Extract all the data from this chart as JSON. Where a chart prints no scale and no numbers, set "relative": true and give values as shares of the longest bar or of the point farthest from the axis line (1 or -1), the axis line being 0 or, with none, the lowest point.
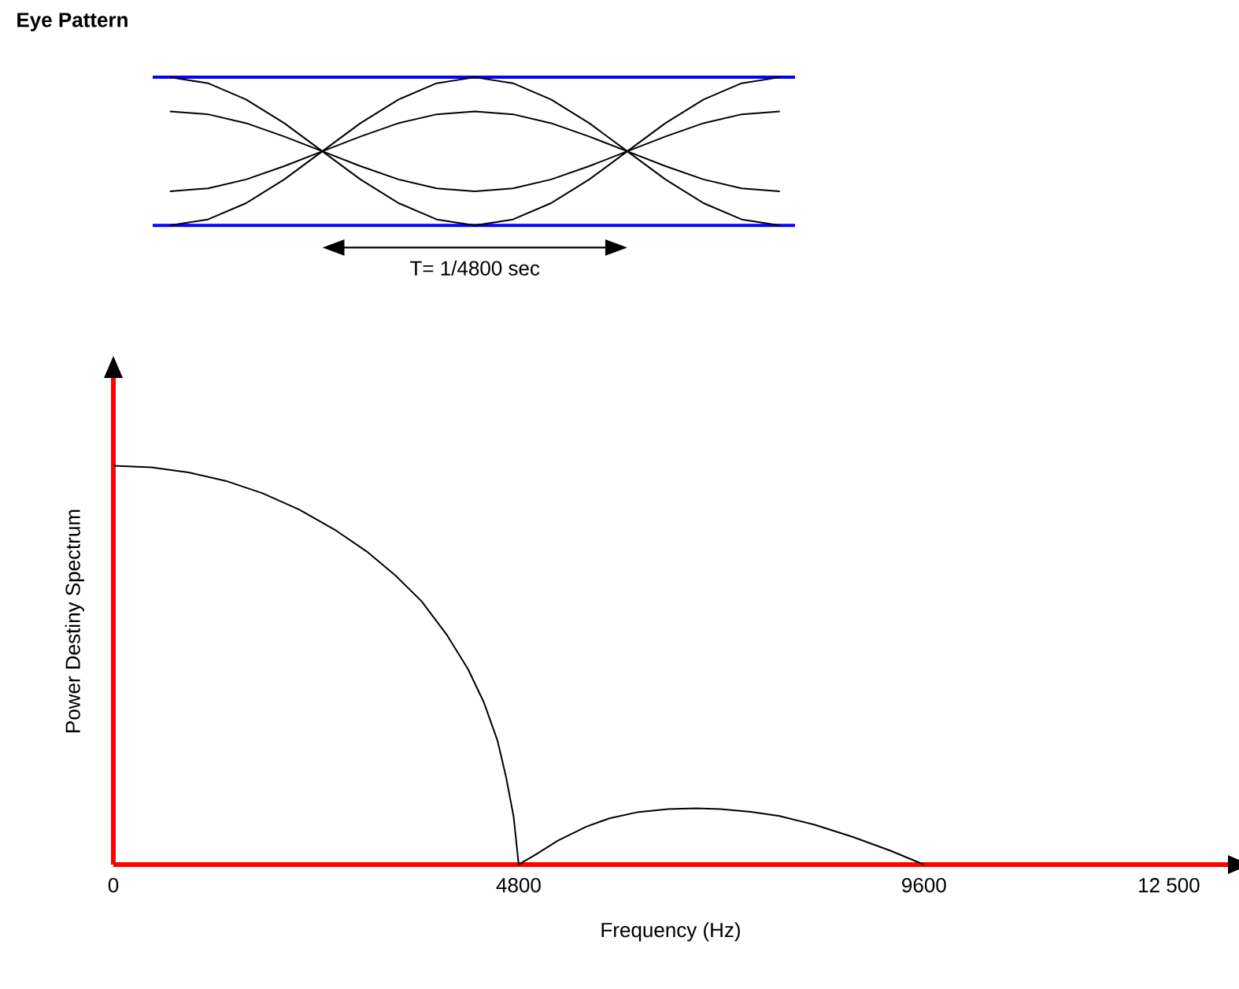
{
  "chart_data": [
    {
      "type": "line",
      "title": "Eye Pattern",
      "relative": true,
      "categories": [
        null,
        null,
        null,
        null,
        null,
        null,
        null,
        null,
        null,
        null,
        null,
        null,
        null,
        null,
        null,
        null,
        null
      ],
      "series": [
        {
          "color": "#000000",
          "values": [
            1,
            0.96,
            0.85,
            0.69,
            0.5,
            0.31,
            0.15,
            0.04,
            0,
            0.04,
            0.15,
            0.31,
            0.5,
            0.69,
            0.85,
            0.96,
            1
          ]
        },
        {
          "color": "#000000",
          "values": [
            0,
            0.04,
            0.15,
            0.31,
            0.5,
            0.69,
            0.85,
            0.96,
            1,
            0.96,
            0.85,
            0.69,
            0.5,
            0.31,
            0.15,
            0.04,
            0
          ]
        },
        {
          "color": "#000000",
          "values": [
            0.77,
            0.75,
            0.69,
            0.6,
            0.5,
            0.4,
            0.31,
            0.25,
            0.23,
            0.25,
            0.31,
            0.4,
            0.5,
            0.6,
            0.69,
            0.75,
            0.77
          ]
        },
        {
          "color": "#000000",
          "values": [
            0.23,
            0.25,
            0.31,
            0.4,
            0.5,
            0.6,
            0.69,
            0.75,
            0.77,
            0.75,
            0.69,
            0.6,
            0.5,
            0.4,
            0.31,
            0.25,
            0.23
          ]
        }
      ],
      "ref_lines": [
        {
          "axis": "y",
          "value": 0,
          "color": "#0000ff"
        },
        {
          "axis": "y",
          "value": 1,
          "color": "#0000ff"
        }
      ],
      "annotations": [
        "T= 1/4800 sec"
      ]
    },
    {
      "type": "line",
      "relative": true,
      "xlabel": "Frequency (Hz)",
      "ylabel": "Power Destiny Spectrum",
      "xlim": [
        0,
        13200
      ],
      "xticks": [
        0,
        4800,
        9600,
        {
          "value": 12500,
          "label": "12 500"
        }
      ],
      "series": [
        {
          "color": "#000000",
          "x": [
            0,
            450,
            892,
            1330,
            1766,
            2200,
            2640,
            3000,
            3340,
            3650,
            3952,
            4200,
            4389,
            4550,
            4651,
            4740,
            4800,
            5000,
            5263,
            5600,
            5875,
            6200,
            6575,
            6900,
            7187,
            7550,
            7886,
            8300,
            8760,
            9200,
            9600
          ],
          "values": [
            1,
            0.996,
            0.983,
            0.962,
            0.931,
            0.89,
            0.837,
            0.785,
            0.725,
            0.66,
            0.575,
            0.49,
            0.406,
            0.31,
            0.219,
            0.12,
            0,
            0.025,
            0.06,
            0.095,
            0.116,
            0.131,
            0.139,
            0.141,
            0.139,
            0.132,
            0.122,
            0.1,
            0.069,
            0.035,
            0
          ]
        }
      ]
    }
  ]
}
